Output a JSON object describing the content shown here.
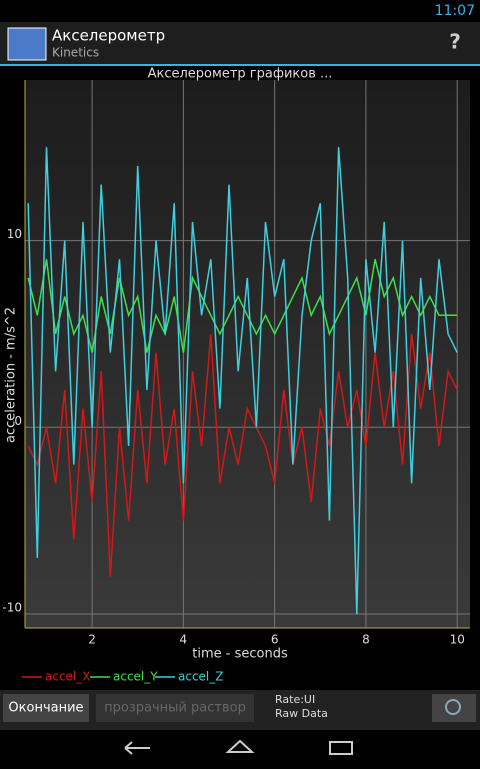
{
  "status_bar": {
    "time": "11:07"
  },
  "app_bar": {
    "title": "Акселерометр",
    "subtitle": "Kinetics",
    "help": "?"
  },
  "chart_data": {
    "type": "line",
    "title": "Акселерометр графиков  ...",
    "x_label": "time - seconds",
    "y_label": "acceleration - m/s^2",
    "x": [
      0.6,
      0.8,
      1.0,
      1.2,
      1.4,
      1.6,
      1.8,
      2.0,
      2.2,
      2.4,
      2.6,
      2.8,
      3.0,
      3.2,
      3.4,
      3.6,
      3.8,
      4.0,
      4.2,
      4.4,
      4.6,
      4.8,
      5.0,
      5.2,
      5.4,
      5.6,
      5.8,
      6.0,
      6.2,
      6.4,
      6.6,
      6.8,
      7.0,
      7.2,
      7.4,
      7.6,
      7.8,
      8.0,
      8.2,
      8.4,
      8.6,
      8.8,
      9.0,
      9.2,
      9.4,
      9.6,
      9.8,
      10.0
    ],
    "series": [
      {
        "name": "accel_X",
        "color": "#d41818",
        "values": [
          -1,
          -2,
          0,
          -3,
          2,
          -6,
          1,
          -4,
          3,
          -8,
          0,
          -5,
          2,
          -3,
          4,
          -2,
          1,
          -5,
          3,
          -1,
          5,
          -3,
          0,
          -2,
          1,
          0,
          -1,
          -3,
          2,
          -2,
          0,
          -4,
          1,
          -1,
          3,
          0,
          2,
          -1,
          4,
          0,
          3,
          -2,
          5,
          1,
          4,
          -1,
          3,
          2
        ]
      },
      {
        "name": "accel_Y",
        "color": "#3ee04a",
        "values": [
          8,
          6,
          9,
          5,
          7,
          5,
          6,
          4,
          7,
          5,
          8,
          6,
          7,
          4,
          6,
          5,
          7,
          4,
          8,
          7,
          6,
          5,
          6,
          7,
          6,
          5,
          6,
          5,
          6,
          7,
          8,
          6,
          7,
          5,
          6,
          7,
          8,
          6,
          9,
          7,
          8,
          6,
          7,
          6,
          7,
          6,
          6,
          6
        ]
      },
      {
        "name": "accel_Z",
        "color": "#3fcfe0",
        "values": [
          12,
          -7,
          15,
          3,
          10,
          -2,
          11,
          0,
          13,
          4,
          9,
          -1,
          14,
          2,
          10,
          5,
          12,
          -3,
          11,
          6,
          9,
          1,
          13,
          3,
          8,
          0,
          11,
          7,
          9,
          -2,
          6,
          10,
          12,
          -5,
          15,
          8,
          -10,
          9,
          4,
          11,
          0,
          10,
          -3,
          8,
          2,
          9,
          5,
          4
        ]
      }
    ],
    "xlim": [
      0.53,
      10.28
    ],
    "ylim": [
      -10.75,
      18.6
    ],
    "xticks": [
      2,
      4,
      6,
      8,
      10
    ],
    "yticks": [
      -10,
      0,
      10
    ],
    "grid": true
  },
  "toolbar": {
    "stop_button": "Окончание",
    "transparent_button": "прозрачный раствор",
    "rate": "Rate:UI",
    "mode": "Raw Data"
  }
}
